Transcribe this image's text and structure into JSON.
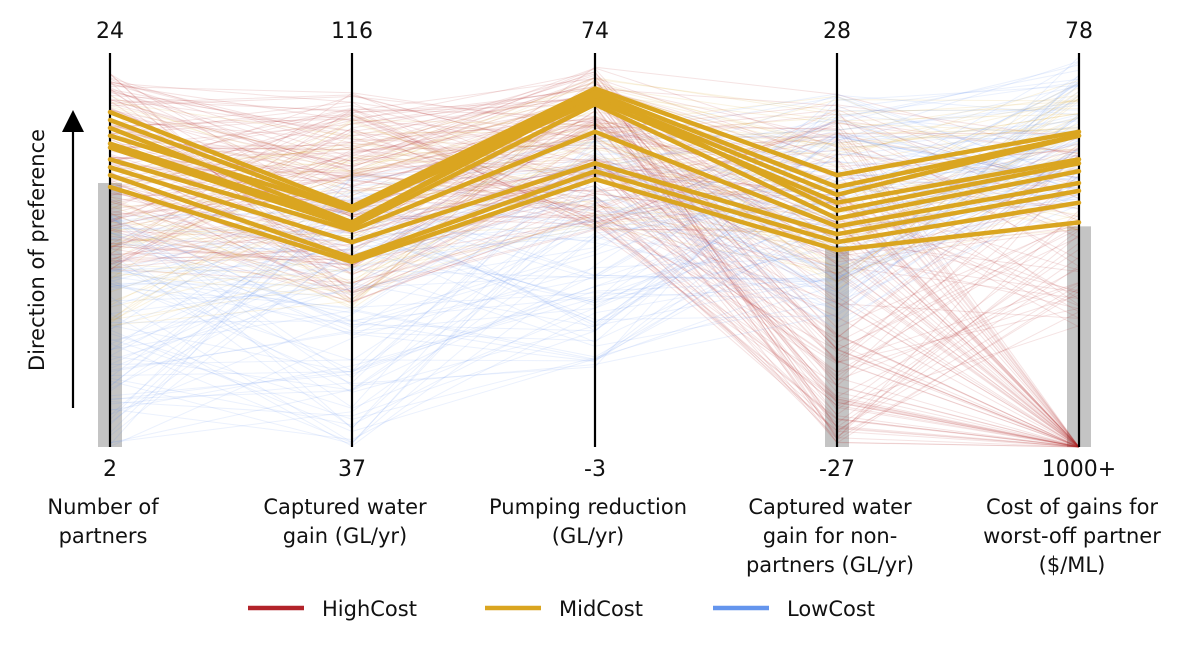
{
  "chart_data": {
    "type": "parallel_coordinates",
    "preference_label": "Direction of preference",
    "axes": [
      {
        "label_lines": [
          "Number of",
          "partners"
        ],
        "top": "24",
        "bottom": "2",
        "brush_upper_fraction": 0.67
      },
      {
        "label_lines": [
          "Captured water",
          "gain (GL/yr)"
        ],
        "top": "116",
        "bottom": "37",
        "brush_upper_fraction": null
      },
      {
        "label_lines": [
          "Pumping reduction",
          "(GL/yr)"
        ],
        "top": "74",
        "bottom": "-3",
        "brush_upper_fraction": null
      },
      {
        "label_lines": [
          "Captured water",
          "gain for non-",
          "partners (GL/yr)"
        ],
        "top": "28",
        "bottom": "-27",
        "brush_upper_fraction": 0.51
      },
      {
        "label_lines": [
          "Cost of gains for",
          "worst-off partner",
          "($/ML)"
        ],
        "top": "78",
        "bottom": "1000+",
        "brush_upper_fraction": 0.56
      }
    ],
    "legend": [
      {
        "name": "HighCost",
        "color": "#b2232a"
      },
      {
        "name": "MidCost",
        "color": "#daa520"
      },
      {
        "name": "LowCost",
        "color": "#6495ed"
      }
    ],
    "highlighted_series": "MidCost",
    "highlighted_lines": [
      [
        0.85,
        0.61,
        0.91,
        0.69,
        0.8
      ],
      [
        0.83,
        0.6,
        0.9,
        0.66,
        0.79
      ],
      [
        0.81,
        0.57,
        0.89,
        0.64,
        0.79
      ],
      [
        0.79,
        0.6,
        0.88,
        0.62,
        0.73
      ],
      [
        0.77,
        0.57,
        0.9,
        0.6,
        0.72
      ],
      [
        0.76,
        0.56,
        0.87,
        0.58,
        0.7
      ],
      [
        0.73,
        0.55,
        0.8,
        0.56,
        0.67
      ],
      [
        0.71,
        0.52,
        0.72,
        0.54,
        0.65
      ],
      [
        0.69,
        0.48,
        0.7,
        0.52,
        0.62
      ],
      [
        0.66,
        0.47,
        0.68,
        0.5,
        0.57
      ]
    ],
    "background_lines": {
      "HighCost": {
        "count": 150
      },
      "MidCost": {
        "count": 50
      },
      "LowCost": {
        "count": 90
      }
    }
  }
}
